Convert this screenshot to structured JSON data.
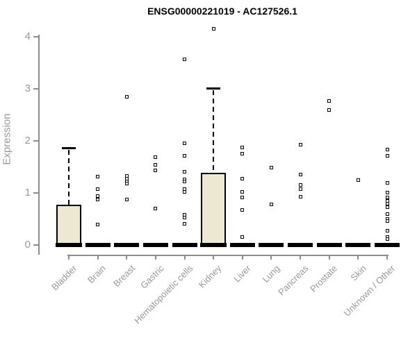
{
  "header": {
    "title": "ENSG00000221019 - AC127526.1"
  },
  "chart_data": {
    "type": "boxplot",
    "title": "ENSG00000221019 - AC127526.1",
    "xlabel": "",
    "ylabel": "Expression",
    "ylim": [
      0,
      4
    ],
    "ytick_labels": [
      "0",
      "1",
      "2",
      "3",
      "4"
    ],
    "yticks": [
      0,
      1,
      2,
      3,
      4
    ],
    "grid": "off",
    "legend": "none",
    "colors": {
      "box_fill": "#ede8d1",
      "box_border": "#000000",
      "axis_line": "#8c8c8c",
      "axis_text": "#999999",
      "title_text": "#000000",
      "outlier_fill": "#ffffff",
      "outlier_border": "#000000"
    },
    "categories": [
      "Bladder",
      "Brain",
      "Breast",
      "Gastric",
      "Hematopoietic cells",
      "Kidney",
      "Liver",
      "Lung",
      "Pancreas",
      "Prostate",
      "Skin",
      "Unknown / Other"
    ],
    "boxes": [
      {
        "category": "Bladder",
        "q1": 0,
        "median": 0,
        "q3": 0.77,
        "whisker_low": 0,
        "whisker_high": 1.87,
        "outliers": []
      },
      {
        "category": "Brain",
        "q1": 0,
        "median": 0,
        "q3": 0,
        "whisker_low": 0,
        "whisker_high": 0,
        "outliers": [
          1.31,
          1.07,
          0.94,
          0.88,
          0.4
        ]
      },
      {
        "category": "Breast",
        "q1": 0,
        "median": 0,
        "q3": 0,
        "whisker_low": 0,
        "whisker_high": 0,
        "outliers": [
          2.85,
          1.33,
          1.28,
          1.22,
          1.18,
          0.88
        ]
      },
      {
        "category": "Gastric",
        "q1": 0,
        "median": 0,
        "q3": 0,
        "whisker_low": 0,
        "whisker_high": 0,
        "outliers": [
          1.69,
          1.54,
          1.43,
          0.7
        ]
      },
      {
        "category": "Hematopoietic cells",
        "q1": 0,
        "median": 0,
        "q3": 0,
        "whisker_low": 0,
        "whisker_high": 0,
        "outliers": [
          3.57,
          1.95,
          1.72,
          1.41,
          1.26,
          1.22,
          1.08,
          1.02,
          0.58,
          0.53,
          0.41
        ]
      },
      {
        "category": "Kidney",
        "q1": 0,
        "median": 0,
        "q3": 1.39,
        "whisker_low": 0,
        "whisker_high": 3.02,
        "outliers": [
          4.15
        ]
      },
      {
        "category": "Liver",
        "q1": 0,
        "median": 0,
        "q3": 0,
        "whisker_low": 0,
        "whisker_high": 0,
        "outliers": [
          1.87,
          1.75,
          1.28,
          1.02,
          0.91,
          0.67,
          0.15
        ]
      },
      {
        "category": "Lung",
        "q1": 0,
        "median": 0,
        "q3": 0,
        "whisker_low": 0,
        "whisker_high": 0,
        "outliers": [
          1.49,
          0.78
        ]
      },
      {
        "category": "Pancreas",
        "q1": 0,
        "median": 0,
        "q3": 0,
        "whisker_low": 0,
        "whisker_high": 0,
        "outliers": [
          1.93,
          1.35,
          1.15,
          1.07,
          0.93
        ]
      },
      {
        "category": "Prostate",
        "q1": 0,
        "median": 0,
        "q3": 0,
        "whisker_low": 0,
        "whisker_high": 0,
        "outliers": [
          2.77,
          2.6
        ]
      },
      {
        "category": "Skin",
        "q1": 0,
        "median": 0,
        "q3": 0,
        "whisker_low": 0,
        "whisker_high": 0,
        "outliers": [
          1.25
        ]
      },
      {
        "category": "Unknown / Other",
        "q1": 0,
        "median": 0,
        "q3": 0,
        "whisker_low": 0,
        "whisker_high": 0,
        "outliers": [
          1.83,
          1.71,
          1.2,
          1.01,
          0.91,
          0.85,
          0.79,
          0.73,
          0.6,
          0.5,
          0.46,
          0.27,
          0.16,
          0.12
        ]
      }
    ]
  }
}
